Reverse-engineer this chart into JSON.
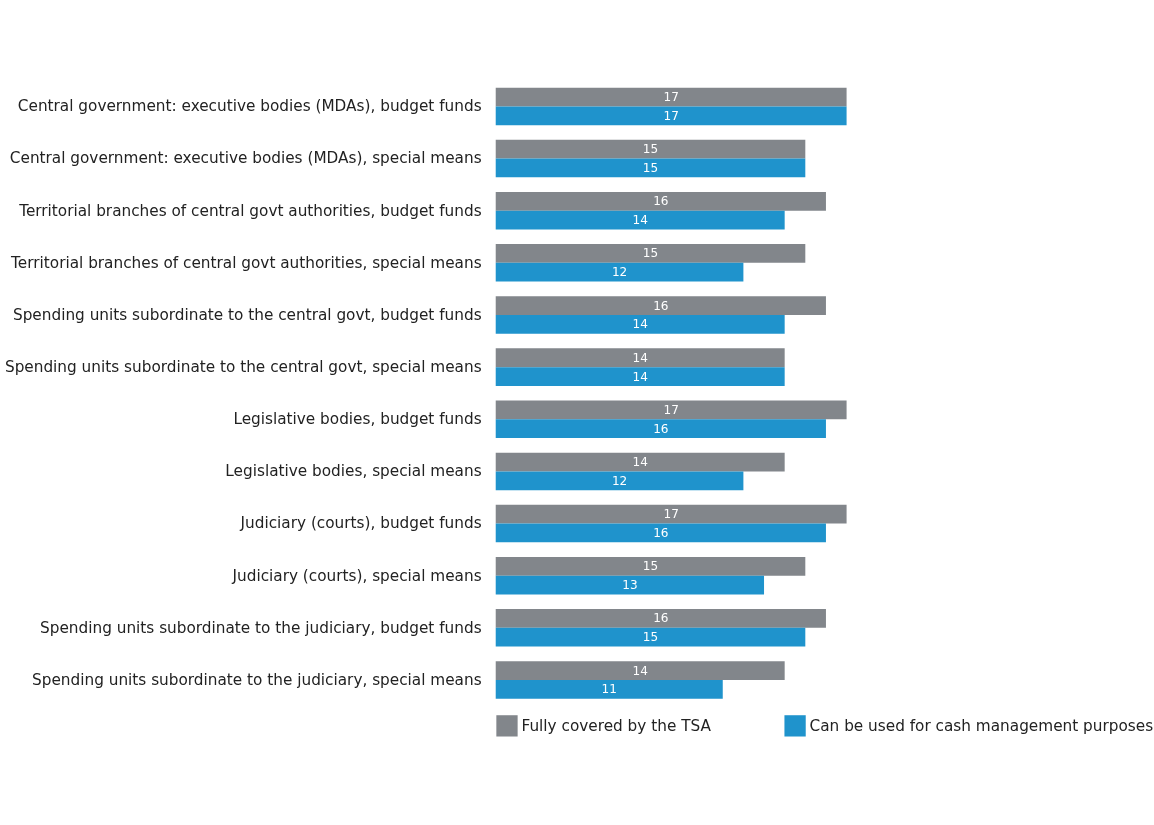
{
  "chart_data": {
    "type": "bar",
    "orientation": "horizontal",
    "categories": [
      "Central government: executive bodies (MDAs), budget funds",
      "Central government: executive bodies (MDAs), special means",
      "Territorial branches of central govt authorities, budget funds",
      "Territorial branches of central govt authorities, special means",
      "Spending units subordinate to the central govt, budget funds",
      "Spending units subordinate to the central govt, special means",
      "Legislative bodies, budget funds",
      "Legislative bodies, special means",
      "Judiciary (courts), budget funds",
      "Judiciary (courts), special means",
      "Spending units subordinate to the judiciary, budget funds",
      "Spending units subordinate to the judiciary, special means"
    ],
    "series": [
      {
        "name": "Fully covered by the TSA",
        "color": "#82868b",
        "values": [
          17,
          15,
          16,
          15,
          16,
          14,
          17,
          14,
          17,
          15,
          16,
          14
        ]
      },
      {
        "name": "Can be used for cash management purposes",
        "color": "#1f93cc",
        "values": [
          17,
          15,
          14,
          12,
          14,
          14,
          16,
          12,
          16,
          13,
          15,
          11
        ]
      }
    ],
    "data_labels": true,
    "legend": "bottom",
    "grid": false,
    "tick_labels": "y"
  }
}
